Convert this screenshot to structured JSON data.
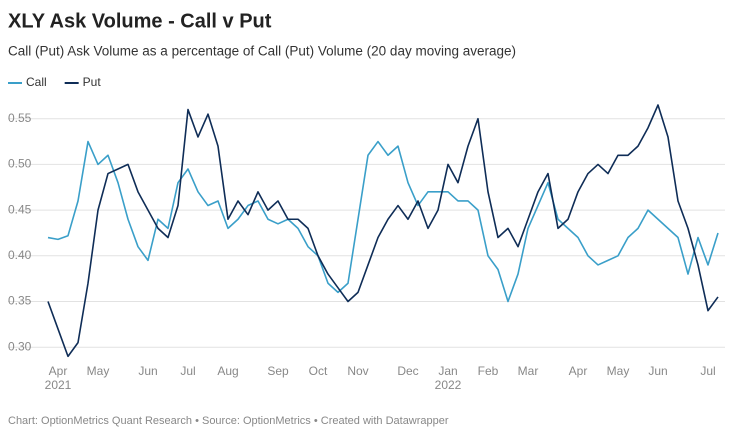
{
  "chart_data": {
    "type": "line",
    "title": "XLY Ask Volume - Call v Put",
    "subtitle": "Call (Put) Ask Volume as a percentage of Call (Put) Volume (20 day moving average)",
    "footer": "Chart: OptionMetrics Quant Research • Source: OptionMetrics • Created with Datawrapper",
    "categories": [
      null,
      "Apr",
      null,
      null,
      null,
      "May",
      null,
      null,
      null,
      null,
      "Jun",
      null,
      null,
      null,
      "Jul",
      null,
      null,
      null,
      "Aug",
      null,
      null,
      null,
      null,
      "Sep",
      null,
      null,
      null,
      "Oct",
      null,
      null,
      null,
      "Nov",
      null,
      null,
      null,
      null,
      "Dec",
      null,
      null,
      null,
      "Jan",
      null,
      null,
      null,
      "Feb",
      null,
      null,
      null,
      "Mar",
      null,
      null,
      null,
      null,
      "Apr",
      null,
      null,
      null,
      "May",
      null,
      null,
      null,
      "Jun",
      null,
      null,
      null,
      null,
      "Jul",
      null
    ],
    "category_years": [
      null,
      "2021",
      null,
      null,
      null,
      null,
      null,
      null,
      null,
      null,
      null,
      null,
      null,
      null,
      null,
      null,
      null,
      null,
      null,
      null,
      null,
      null,
      null,
      null,
      null,
      null,
      null,
      null,
      null,
      null,
      null,
      null,
      null,
      null,
      null,
      null,
      null,
      null,
      null,
      null,
      "2022",
      null,
      null,
      null,
      null,
      null,
      null,
      null,
      null,
      null,
      null,
      null,
      null,
      null,
      null,
      null,
      null,
      null,
      null,
      null,
      null,
      null,
      null,
      null,
      null,
      null,
      null,
      null
    ],
    "series": [
      {
        "name": "Call",
        "color": "#3a9fc9",
        "values": [
          0.42,
          0.418,
          0.422,
          0.46,
          0.525,
          0.5,
          0.51,
          0.48,
          0.44,
          0.41,
          0.395,
          0.44,
          0.43,
          0.48,
          0.495,
          0.47,
          0.455,
          0.46,
          0.43,
          0.44,
          0.455,
          0.46,
          0.44,
          0.435,
          0.44,
          0.43,
          0.41,
          0.4,
          0.37,
          0.36,
          0.37,
          0.44,
          0.51,
          0.525,
          0.51,
          0.52,
          0.48,
          0.455,
          0.47,
          0.47,
          0.47,
          0.46,
          0.46,
          0.45,
          0.4,
          0.385,
          0.35,
          0.38,
          0.43,
          0.455,
          0.48,
          0.44,
          0.43,
          0.42,
          0.4,
          0.39,
          0.395,
          0.4,
          0.42,
          0.43,
          0.45,
          0.44,
          0.43,
          0.42,
          0.38,
          0.42,
          0.39,
          0.425
        ]
      },
      {
        "name": "Put",
        "color": "#0f2d57",
        "values": [
          0.35,
          0.32,
          0.29,
          0.305,
          0.37,
          0.45,
          0.49,
          0.495,
          0.5,
          0.47,
          0.45,
          0.43,
          0.42,
          0.455,
          0.56,
          0.53,
          0.555,
          0.52,
          0.44,
          0.46,
          0.445,
          0.47,
          0.45,
          0.46,
          0.44,
          0.44,
          0.43,
          0.4,
          0.38,
          0.365,
          0.35,
          0.36,
          0.39,
          0.42,
          0.44,
          0.455,
          0.44,
          0.46,
          0.43,
          0.45,
          0.5,
          0.48,
          0.52,
          0.55,
          0.47,
          0.42,
          0.43,
          0.41,
          0.44,
          0.47,
          0.49,
          0.43,
          0.44,
          0.47,
          0.49,
          0.5,
          0.49,
          0.51,
          0.51,
          0.52,
          0.54,
          0.565,
          0.53,
          0.46,
          0.43,
          0.39,
          0.34,
          0.355
        ]
      }
    ],
    "ylim": [
      0.286,
      0.565
    ],
    "yticks": [
      {
        "value": 0.3,
        "label": "0.30"
      },
      0.35,
      {
        "value": 0.4,
        "label": "0.40"
      },
      0.45,
      {
        "value": 0.5,
        "label": "0.50"
      },
      0.55
    ],
    "grid": true
  }
}
